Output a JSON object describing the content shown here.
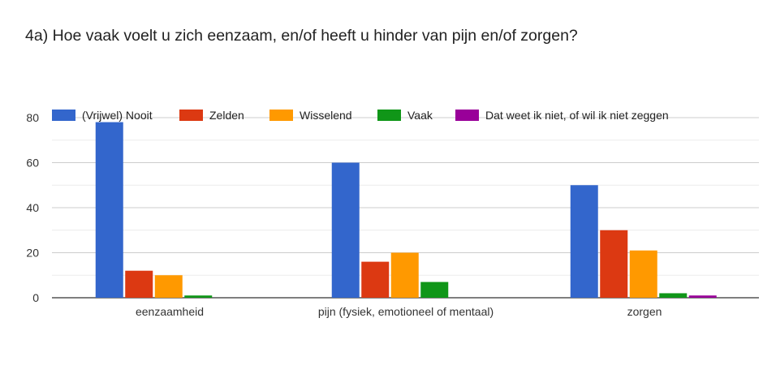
{
  "title": "4a)  Hoe vaak voelt u zich eenzaam, en/of heeft u hinder van pijn en/of zorgen?",
  "chart_data": {
    "type": "bar",
    "title": "4a)  Hoe vaak voelt u zich eenzaam, en/of heeft u hinder van pijn en/of zorgen?",
    "categories": [
      "eenzaamheid",
      "pijn (fysiek, emotioneel of mentaal)",
      "zorgen"
    ],
    "series": [
      {
        "name": "(Vrijwel) Nooit",
        "color": "#3366cc",
        "values": [
          78,
          60,
          50
        ]
      },
      {
        "name": "Zelden",
        "color": "#dc3912",
        "values": [
          12,
          16,
          30
        ]
      },
      {
        "name": "Wisselend",
        "color": "#ff9900",
        "values": [
          10,
          20,
          21
        ]
      },
      {
        "name": "Vaak",
        "color": "#109618",
        "values": [
          1,
          7,
          2
        ]
      },
      {
        "name": "Dat weet ik niet, of wil ik niet zeggen",
        "color": "#990099",
        "values": [
          0,
          0,
          1
        ]
      }
    ],
    "yticks": [
      0,
      20,
      40,
      60,
      80
    ],
    "ylim": [
      0,
      80
    ],
    "grid": true,
    "legend_position": "top"
  }
}
